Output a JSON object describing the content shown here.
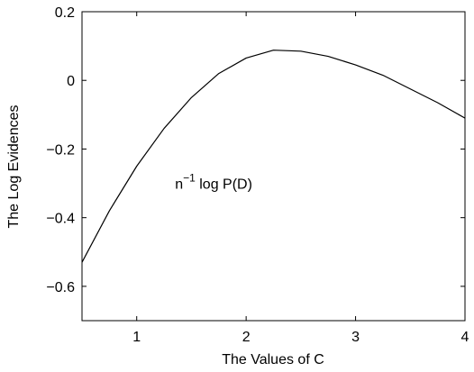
{
  "chart_data": {
    "type": "line",
    "xlabel": "The Values of C",
    "ylabel": "The Log Evidences",
    "annotation": {
      "base": "n",
      "sup": "−1",
      "rest": " log P(D)",
      "x": 1.35,
      "y": -0.3
    },
    "x": [
      0.5,
      0.75,
      1.0,
      1.25,
      1.5,
      1.75,
      2.0,
      2.25,
      2.5,
      2.75,
      3.0,
      3.25,
      3.5,
      3.75,
      4.0
    ],
    "series": [
      {
        "color": "#000000",
        "values": [
          -0.53,
          -0.38,
          -0.25,
          -0.14,
          -0.05,
          0.02,
          0.065,
          0.088,
          0.085,
          0.07,
          0.045,
          0.015,
          -0.025,
          -0.065,
          -0.11
        ]
      }
    ],
    "xlim": [
      0.5,
      4
    ],
    "xticks": [
      1,
      2,
      3,
      4
    ],
    "ylim": [
      -0.7,
      0.2
    ],
    "yticks": [
      {
        "value": -0.6,
        "label": "−0.6"
      },
      {
        "value": -0.4,
        "label": "−0.4"
      },
      {
        "value": -0.2,
        "label": "−0.2"
      },
      0,
      0.2
    ]
  }
}
